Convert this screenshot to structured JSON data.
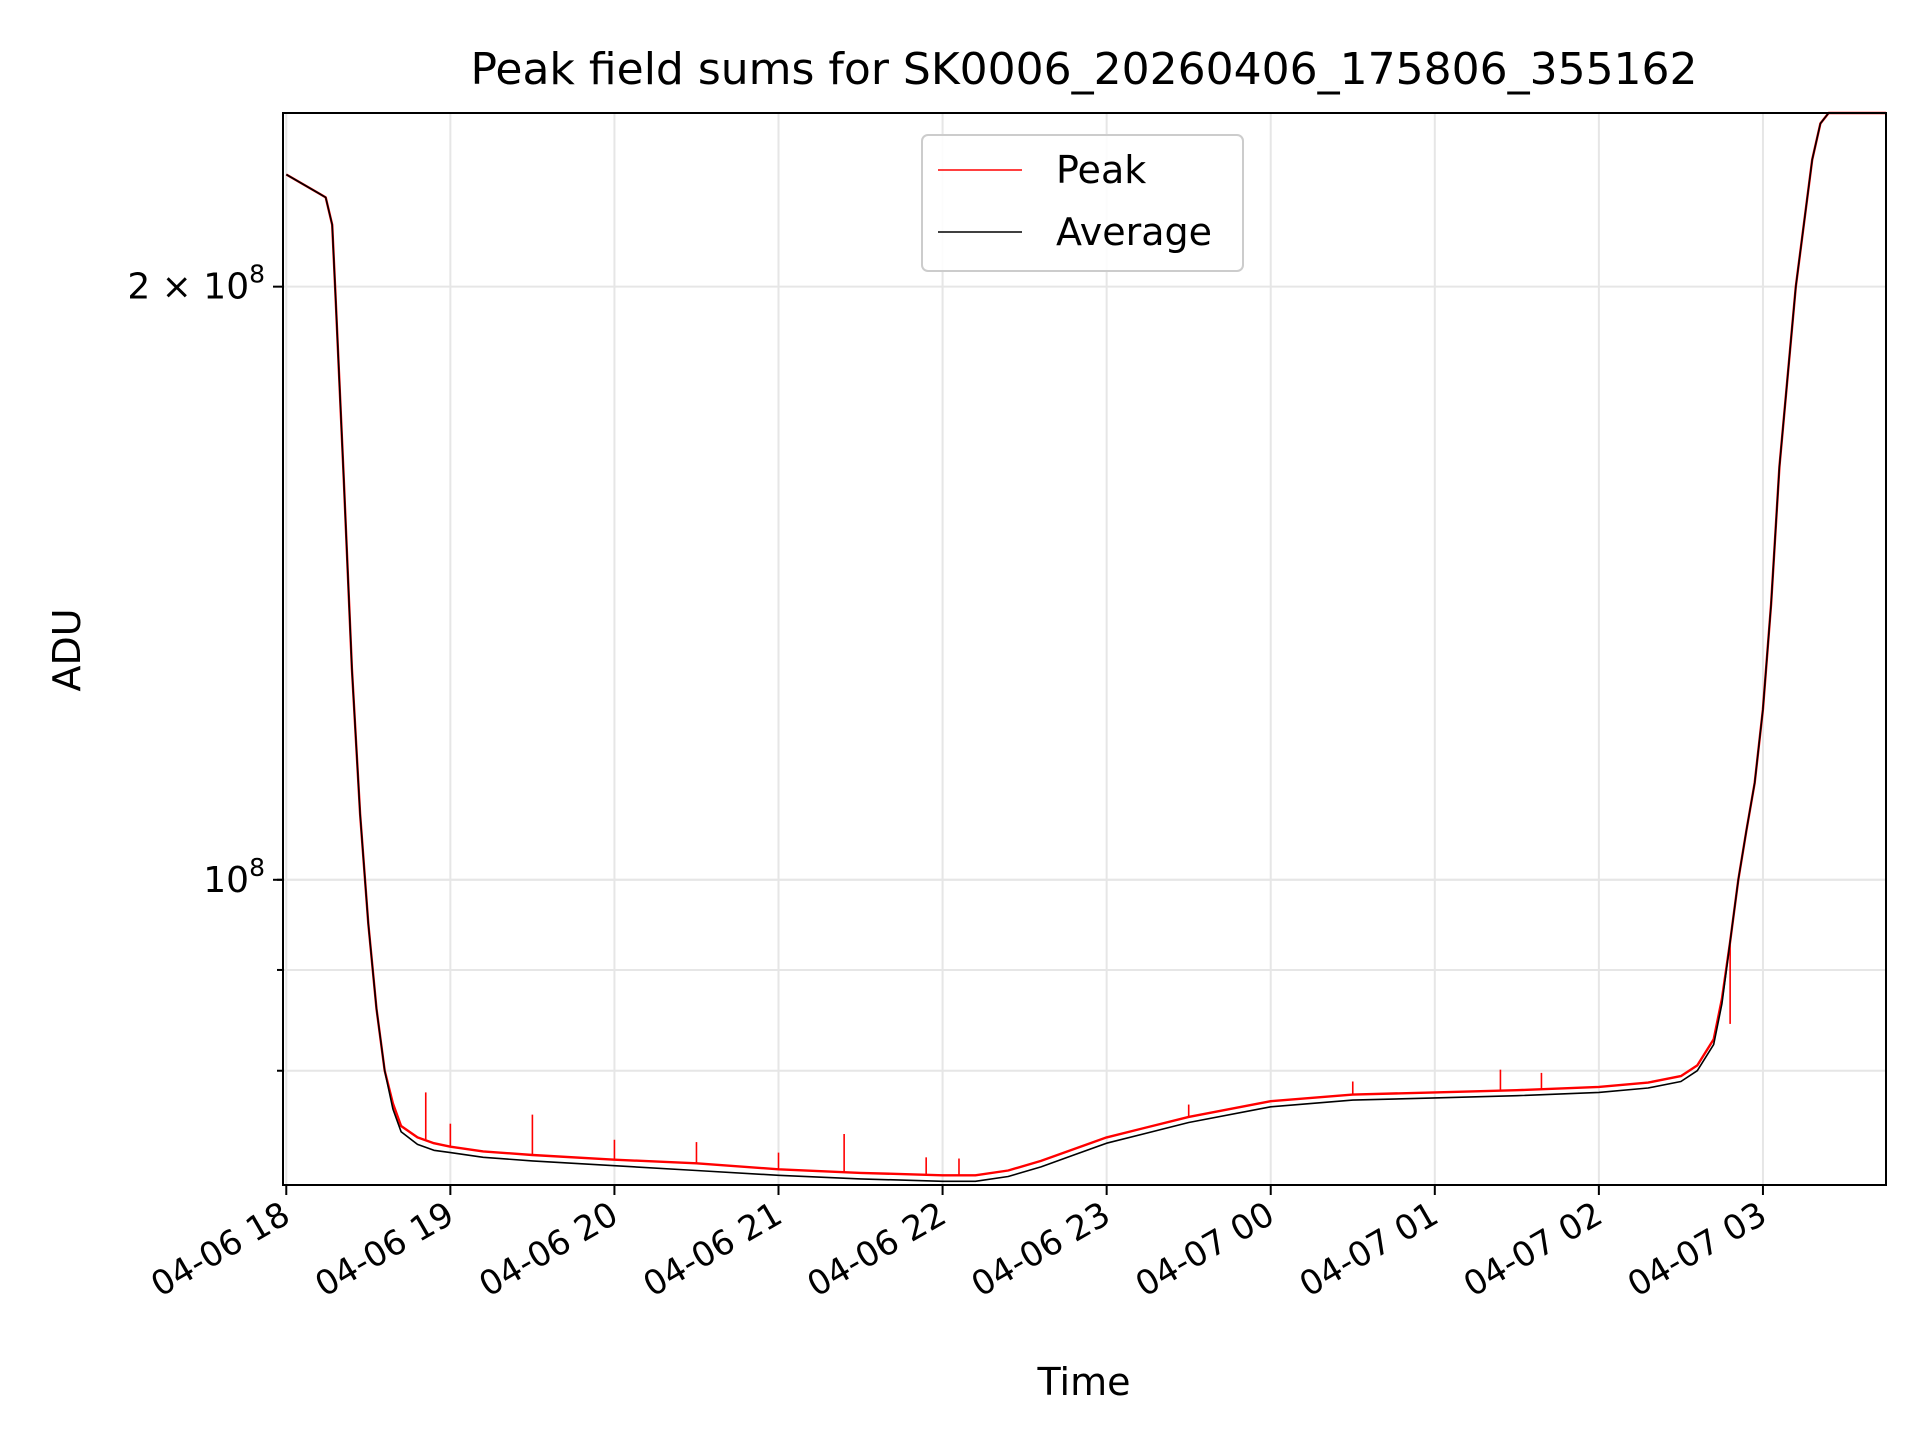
{
  "chart_data": {
    "type": "line",
    "title": "Peak field sums for SK0006_20260406_175806_355162",
    "xlabel": "Time",
    "ylabel": "ADU",
    "y_scale": "log",
    "ylim": [
      70000000,
      245000000
    ],
    "x_unit": "hours since 04-06 18:00",
    "xlim": [
      -0.02,
      9.75
    ],
    "grid": true,
    "legend_position": "upper center",
    "x_ticks": [
      {
        "value": 0,
        "label": "04-06 18"
      },
      {
        "value": 1,
        "label": "04-06 19"
      },
      {
        "value": 2,
        "label": "04-06 20"
      },
      {
        "value": 3,
        "label": "04-06 21"
      },
      {
        "value": 4,
        "label": "04-06 22"
      },
      {
        "value": 5,
        "label": "04-06 23"
      },
      {
        "value": 6,
        "label": "04-07 00"
      },
      {
        "value": 7,
        "label": "04-07 01"
      },
      {
        "value": 8,
        "label": "04-07 02"
      },
      {
        "value": 9,
        "label": "04-07 03"
      }
    ],
    "y_major_ticks": [
      {
        "value": 100000000,
        "base": "10",
        "exp": "8",
        "coef": ""
      },
      {
        "value": 200000000,
        "base": "10",
        "exp": "8",
        "coef": "2 × "
      }
    ],
    "y_minor_ticks": [
      80000000,
      90000000,
      100000000
    ],
    "series": [
      {
        "name": "Peak",
        "color": "#ff0000",
        "x": [
          0.0,
          0.2,
          0.24,
          0.28,
          0.3,
          0.35,
          0.4,
          0.45,
          0.5,
          0.55,
          0.6,
          0.65,
          0.7,
          0.8,
          0.9,
          1.0,
          1.2,
          1.5,
          2.0,
          2.5,
          3.0,
          3.5,
          4.0,
          4.2,
          4.4,
          4.6,
          4.8,
          5.0,
          5.5,
          6.0,
          6.5,
          7.0,
          7.5,
          8.0,
          8.3,
          8.5,
          8.6,
          8.7,
          8.75,
          8.8,
          8.85,
          8.9,
          8.95,
          9.0,
          9.05,
          9.1,
          9.2,
          9.3,
          9.35,
          9.4,
          9.45,
          9.5,
          9.75
        ],
        "y": [
          228000000,
          223000000,
          222000000,
          215000000,
          198000000,
          160000000,
          128000000,
          108000000,
          95000000,
          86000000,
          80000000,
          77000000,
          75000000,
          74000000,
          73500000,
          73200000,
          72800000,
          72500000,
          72100000,
          71800000,
          71300000,
          71000000,
          70800000,
          70800000,
          71200000,
          72000000,
          73000000,
          74000000,
          75800000,
          77200000,
          77800000,
          78000000,
          78200000,
          78500000,
          78900000,
          79500000,
          80500000,
          83000000,
          87000000,
          93000000,
          100000000,
          106000000,
          112000000,
          122000000,
          138000000,
          162000000,
          200000000,
          232000000,
          242000000,
          245000000,
          245000000,
          245000000,
          245000000
        ],
        "spikes": [
          {
            "x": 0.85,
            "y": 78000000
          },
          {
            "x": 1.0,
            "y": 75200000
          },
          {
            "x": 1.5,
            "y": 76000000
          },
          {
            "x": 2.0,
            "y": 73800000
          },
          {
            "x": 2.5,
            "y": 73600000
          },
          {
            "x": 3.0,
            "y": 72700000
          },
          {
            "x": 3.4,
            "y": 74300000
          },
          {
            "x": 3.9,
            "y": 72300000
          },
          {
            "x": 4.1,
            "y": 72200000
          },
          {
            "x": 5.5,
            "y": 76900000
          },
          {
            "x": 6.5,
            "y": 79000000
          },
          {
            "x": 7.4,
            "y": 80100000
          },
          {
            "x": 7.65,
            "y": 79800000
          },
          {
            "x": 8.8,
            "y": 84500000
          }
        ]
      },
      {
        "name": "Average",
        "color": "#000000",
        "x": [
          0.0,
          0.2,
          0.24,
          0.28,
          0.3,
          0.35,
          0.4,
          0.45,
          0.5,
          0.55,
          0.6,
          0.65,
          0.7,
          0.8,
          0.9,
          1.0,
          1.2,
          1.5,
          2.0,
          2.5,
          3.0,
          3.5,
          4.0,
          4.2,
          4.4,
          4.6,
          4.8,
          5.0,
          5.5,
          6.0,
          6.5,
          7.0,
          7.5,
          8.0,
          8.3,
          8.5,
          8.6,
          8.7,
          8.75,
          8.8,
          8.85,
          8.9,
          8.95,
          9.0,
          9.05,
          9.1,
          9.2,
          9.3,
          9.35,
          9.4,
          9.45,
          9.5,
          9.75
        ],
        "y": [
          228000000,
          223000000,
          222000000,
          215000000,
          198000000,
          160000000,
          128000000,
          108000000,
          95000000,
          86000000,
          80000000,
          76500000,
          74500000,
          73400000,
          72900000,
          72700000,
          72300000,
          72000000,
          71600000,
          71200000,
          70800000,
          70500000,
          70300000,
          70300000,
          70700000,
          71500000,
          72500000,
          73500000,
          75300000,
          76700000,
          77300000,
          77500000,
          77700000,
          78000000,
          78400000,
          79000000,
          80000000,
          82500000,
          86500000,
          93000000,
          100000000,
          106000000,
          112000000,
          122000000,
          138000000,
          162000000,
          200000000,
          232000000,
          242000000,
          245000000,
          245000000,
          245000000,
          245000000
        ]
      }
    ]
  }
}
